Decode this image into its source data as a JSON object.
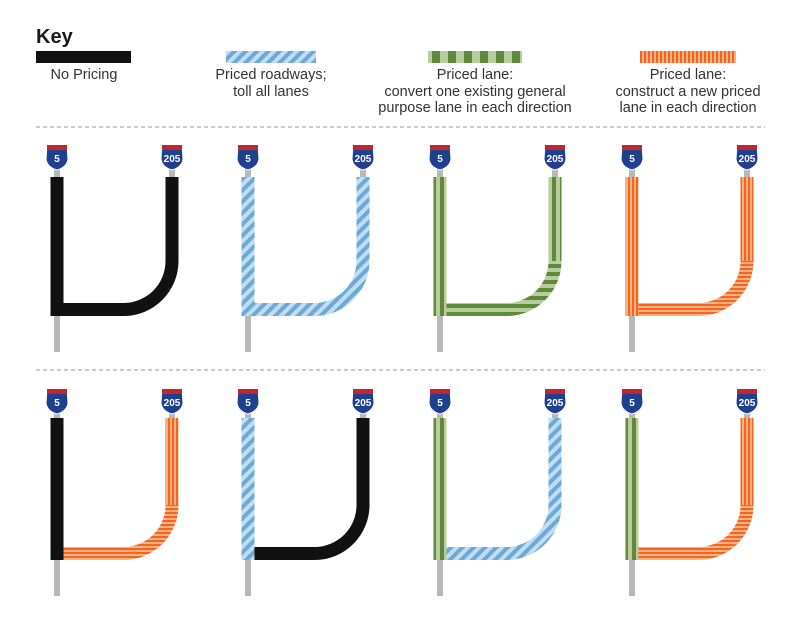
{
  "key": {
    "title": "Key",
    "items": [
      {
        "id": "none",
        "lines": [
          "No Pricing"
        ]
      },
      {
        "id": "toll",
        "lines": [
          "Priced roadways;",
          "toll all lanes"
        ]
      },
      {
        "id": "convert",
        "lines": [
          "Priced lane:",
          "convert one existing general",
          "purpose lane in each direction"
        ]
      },
      {
        "id": "new",
        "lines": [
          "Priced lane:",
          "construct a new priced",
          "lane in each direction"
        ]
      }
    ]
  },
  "shields": {
    "left": "5",
    "right": "205"
  },
  "colors": {
    "black": "#111111",
    "toll_a": "#6aa9d8",
    "toll_b": "#c3ddf0",
    "convert_a": "#5f8a3c",
    "convert_b": "#b9cc9e",
    "new_a": "#f26522",
    "new_b": "#fbb07f",
    "post": "#b8b8b8",
    "divider": "#9a9a9a",
    "shield_blue": "#1f3f8f",
    "shield_red": "#c0272d"
  },
  "scenarios": [
    {
      "row": 0,
      "col": 0,
      "i5": "none",
      "i205": "none"
    },
    {
      "row": 0,
      "col": 1,
      "i5": "toll",
      "i205": "toll"
    },
    {
      "row": 0,
      "col": 2,
      "i5": "convert",
      "i205": "convert"
    },
    {
      "row": 0,
      "col": 3,
      "i5": "new",
      "i205": "new"
    },
    {
      "row": 1,
      "col": 0,
      "i5": "none",
      "i205": "new"
    },
    {
      "row": 1,
      "col": 1,
      "i5": "toll",
      "i205": "none"
    },
    {
      "row": 1,
      "col": 2,
      "i5": "convert",
      "i205": "toll"
    },
    {
      "row": 1,
      "col": 3,
      "i5": "convert",
      "i205": "new"
    }
  ]
}
